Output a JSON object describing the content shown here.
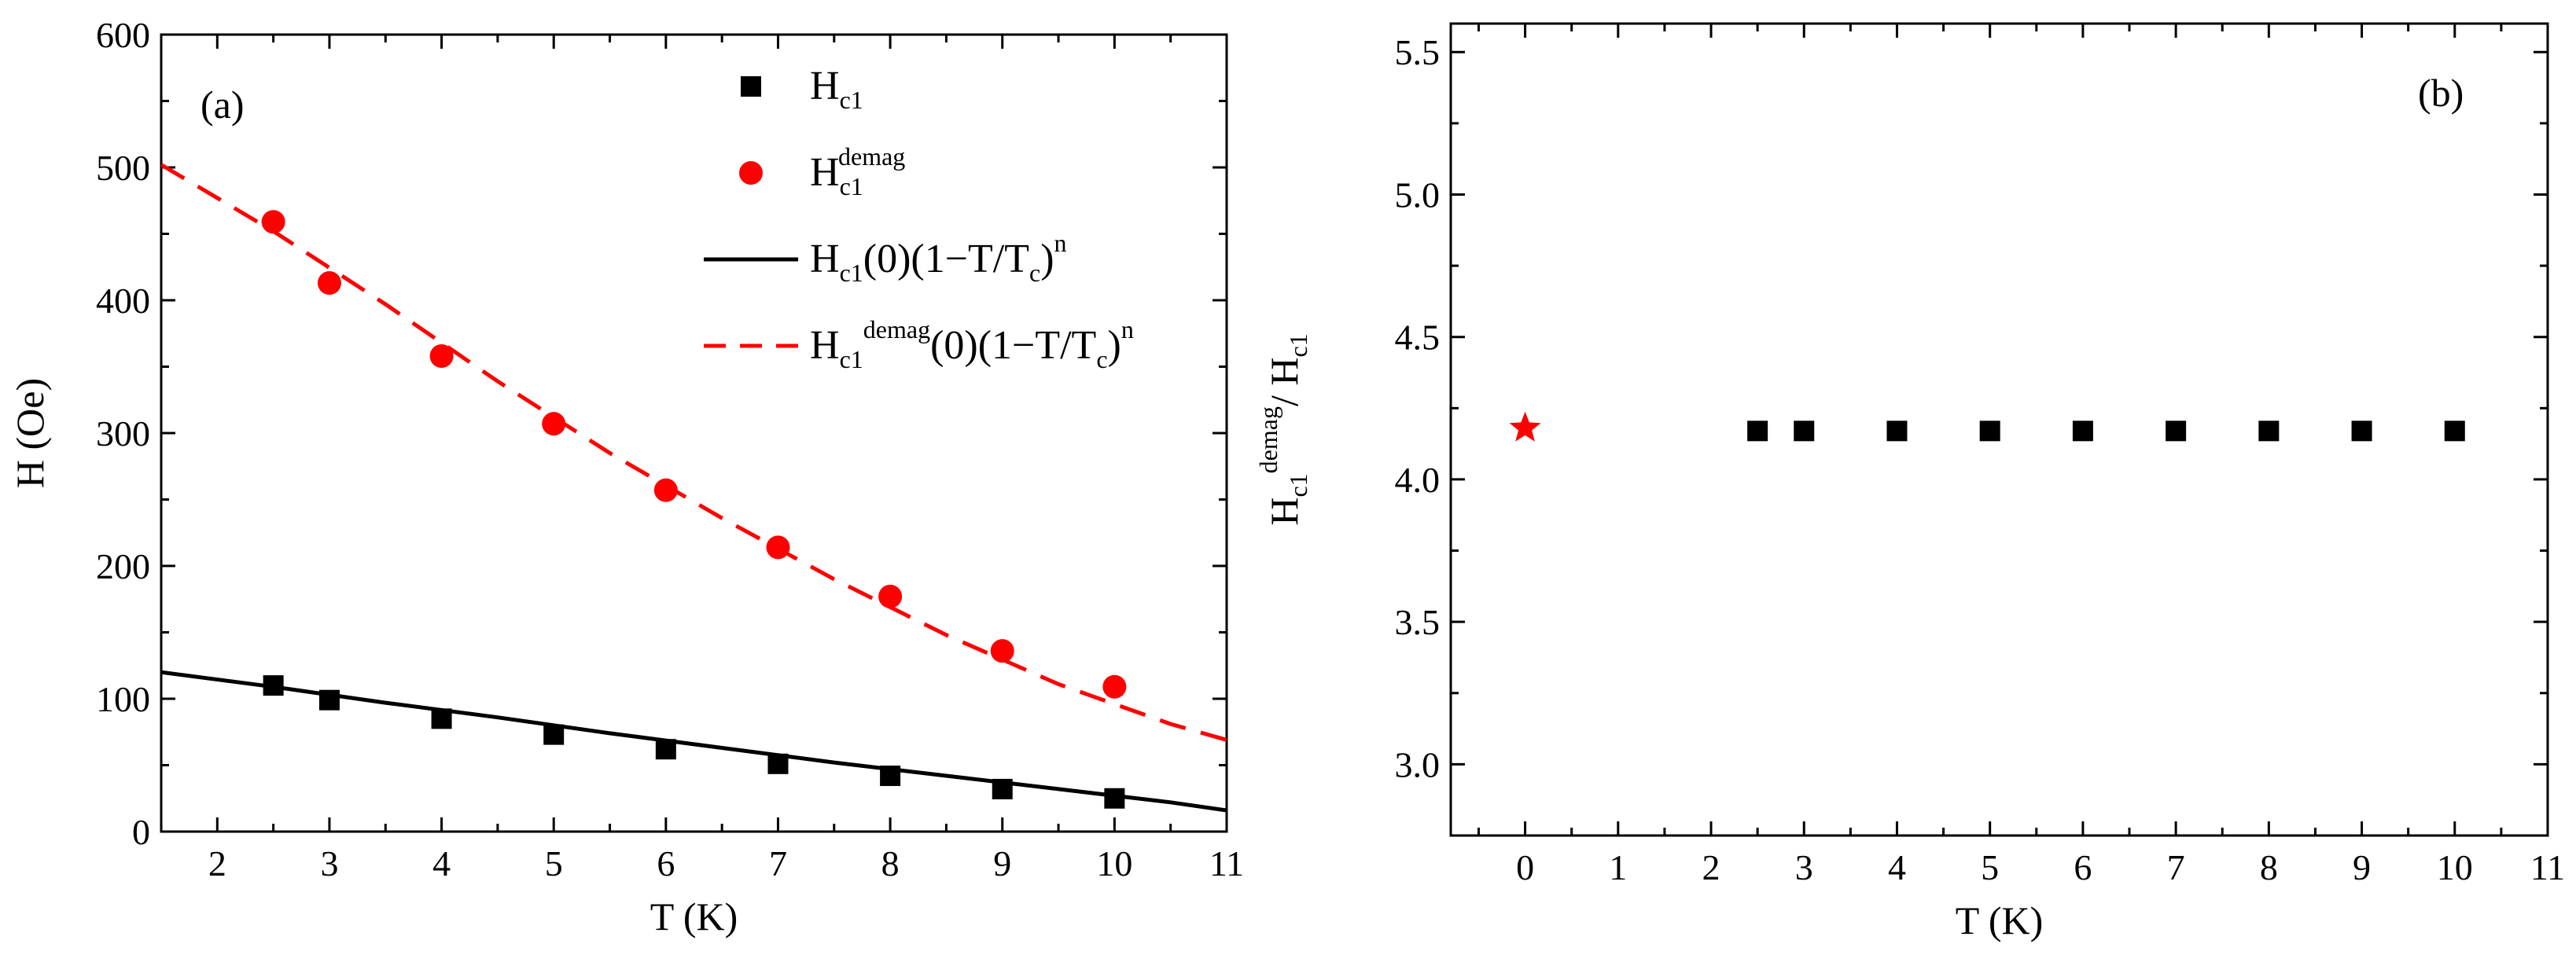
{
  "chart_data": [
    {
      "id": "a",
      "type": "scatter",
      "panel_label": "(a)",
      "xlabel": "T (K)",
      "ylabel": "H (Oe)",
      "xlim": [
        1.5,
        11
      ],
      "ylim": [
        0,
        600
      ],
      "xticks": [
        2,
        3,
        4,
        5,
        6,
        7,
        8,
        9,
        10,
        11
      ],
      "yticks": [
        0,
        100,
        200,
        300,
        400,
        500,
        600
      ],
      "series": [
        {
          "name": "Hc1",
          "kind": "points",
          "marker": "square",
          "color": "#000000",
          "legend": {
            "base": "H",
            "sub": "c1",
            "sup": ""
          },
          "x": [
            2.5,
            3,
            4,
            5,
            6,
            7,
            8,
            9,
            10
          ],
          "y": [
            110,
            99,
            85,
            73,
            62,
            51,
            42,
            32,
            25
          ]
        },
        {
          "name": "Hc1 demag",
          "kind": "points",
          "marker": "circle",
          "color": "#ff0000",
          "legend": {
            "base": "H",
            "sub": "c1",
            "sup": "demag"
          },
          "x": [
            2.5,
            3,
            4,
            5,
            6,
            7,
            8,
            9,
            10
          ],
          "y": [
            459,
            413,
            358,
            307,
            257,
            214,
            177,
            136,
            109
          ]
        },
        {
          "name": "Hc1 fit",
          "kind": "line",
          "dash": "solid",
          "color": "#000000",
          "legend": {
            "parts": [
              [
                "H",
                ""
              ],
              [
                "c1",
                "sub"
              ],
              [
                "(0)(1−T/T",
                ""
              ],
              [
                "c",
                "sub"
              ],
              [
                ")",
                ""
              ],
              [
                "n",
                "sup"
              ]
            ]
          },
          "x": [
            1.5,
            2.5,
            3.5,
            4.5,
            5.5,
            6.5,
            7.5,
            8.5,
            9.5,
            10.5,
            11
          ],
          "y": [
            120,
            109,
            97,
            86,
            74,
            63,
            52,
            42,
            32,
            22,
            16
          ]
        },
        {
          "name": "Hc1 demag fit",
          "kind": "line",
          "dash": "dashed",
          "color": "#ff0000",
          "legend": {
            "parts": [
              [
                "H",
                ""
              ],
              [
                "c1",
                "sub"
              ],
              [
                "demag",
                "sup"
              ],
              [
                "(0)(1−T/T",
                ""
              ],
              [
                "c",
                "sub"
              ],
              [
                ")",
                ""
              ],
              [
                "n",
                "sup"
              ]
            ]
          },
          "x": [
            1.5,
            2.5,
            3.5,
            4.5,
            5.5,
            6.5,
            7.5,
            8.5,
            9.5,
            10.5,
            11
          ],
          "y": [
            502,
            452,
            397,
            339,
            285,
            236,
            190,
            148,
            111,
            81,
            69
          ]
        }
      ]
    },
    {
      "id": "b",
      "type": "scatter",
      "panel_label": "(b)",
      "xlabel": "T (K)",
      "ylabel": {
        "parts": [
          [
            "H",
            ""
          ],
          [
            "c1",
            "sub"
          ],
          [
            "demag",
            "sup"
          ],
          [
            "/ H",
            ""
          ],
          [
            "c1",
            "sub"
          ]
        ]
      },
      "xlim": [
        -0.8,
        11
      ],
      "ylim": [
        2.75,
        5.6
      ],
      "xticks": [
        0,
        1,
        2,
        3,
        4,
        5,
        6,
        7,
        8,
        9,
        10,
        11
      ],
      "yticks": [
        3.0,
        3.5,
        4.0,
        4.5,
        5.0,
        5.5
      ],
      "series": [
        {
          "name": "ratio",
          "kind": "points",
          "marker": "square",
          "color": "#000000",
          "x": [
            2.5,
            3,
            4,
            5,
            6,
            7,
            8,
            9,
            10
          ],
          "y": [
            4.17,
            4.17,
            4.17,
            4.17,
            4.17,
            4.17,
            4.17,
            4.17,
            4.17
          ]
        },
        {
          "name": "ratio at 0 K",
          "kind": "points",
          "marker": "star",
          "color": "#ff0000",
          "x": [
            0
          ],
          "y": [
            4.18
          ]
        }
      ]
    }
  ]
}
